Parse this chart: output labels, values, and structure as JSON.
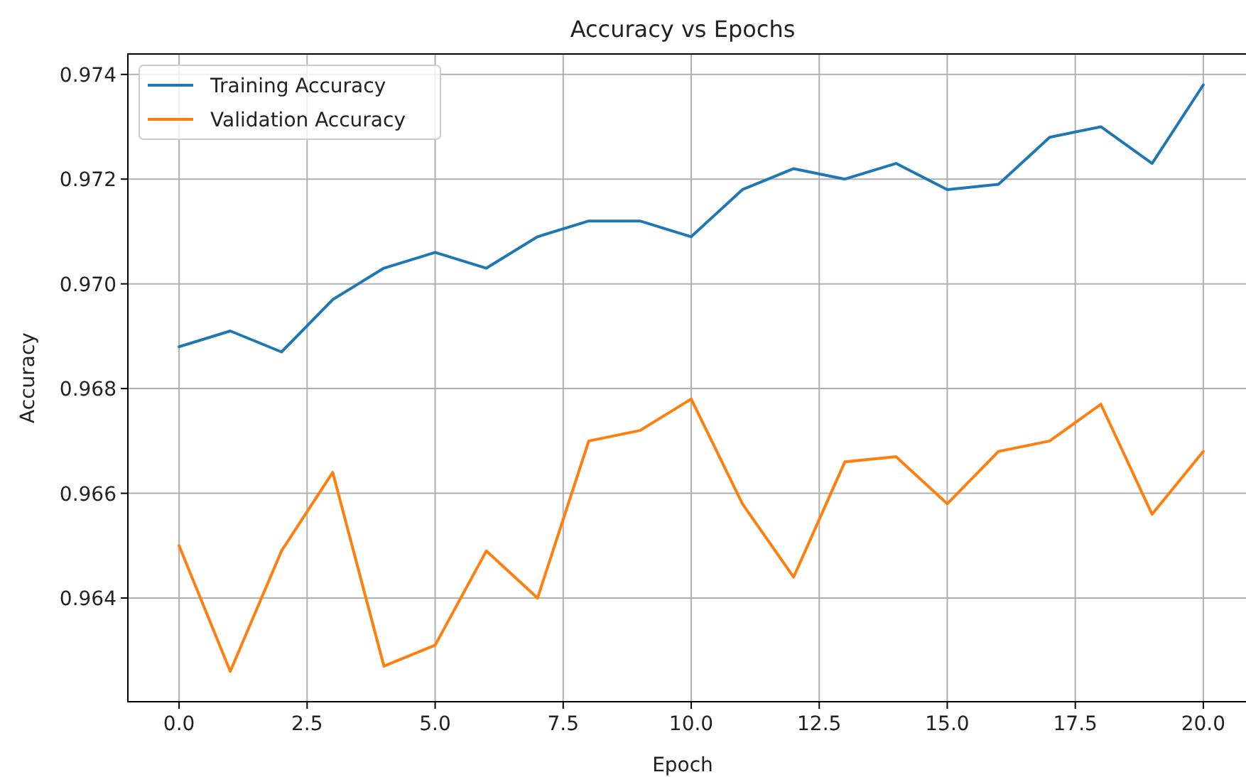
{
  "chart_data": {
    "type": "line",
    "title": "Accuracy vs Epochs",
    "xlabel": "Epoch",
    "ylabel": "Accuracy",
    "x": [
      0,
      1,
      2,
      3,
      4,
      5,
      6,
      7,
      8,
      9,
      10,
      11,
      12,
      13,
      14,
      15,
      16,
      17,
      18,
      19,
      20
    ],
    "series": [
      {
        "name": "Training Accuracy",
        "color": "#1f77b4",
        "values": [
          0.9688,
          0.9691,
          0.9687,
          0.9697,
          0.9703,
          0.9706,
          0.9703,
          0.9709,
          0.9712,
          0.9712,
          0.9709,
          0.9718,
          0.9722,
          0.972,
          0.9723,
          0.9718,
          0.9719,
          0.9728,
          0.973,
          0.9723,
          0.9738
        ]
      },
      {
        "name": "Validation Accuracy",
        "color": "#ff7f0e",
        "values": [
          0.965,
          0.9626,
          0.9649,
          0.9664,
          0.9627,
          0.9631,
          0.9649,
          0.964,
          0.967,
          0.9672,
          0.9678,
          0.9658,
          0.9644,
          0.9666,
          0.9667,
          0.9658,
          0.9668,
          0.967,
          0.9677,
          0.9656,
          0.9668
        ]
      }
    ],
    "xlim": [
      -1,
      21
    ],
    "ylim": [
      0.96202,
      0.97439
    ],
    "xticks": [
      {
        "value": 0,
        "label": "0.0"
      },
      {
        "value": 2.5,
        "label": "2.5"
      },
      {
        "value": 5,
        "label": "5.0"
      },
      {
        "value": 7.5,
        "label": "7.5"
      },
      {
        "value": 10,
        "label": "10.0"
      },
      {
        "value": 12.5,
        "label": "12.5"
      },
      {
        "value": 15,
        "label": "15.0"
      },
      {
        "value": 17.5,
        "label": "17.5"
      },
      {
        "value": 20,
        "label": "20.0"
      }
    ],
    "yticks": [
      0.964,
      0.966,
      0.968,
      {
        "value": 0.97,
        "label": "0.970"
      },
      0.972,
      0.974
    ],
    "grid": true,
    "legend": "top left"
  }
}
